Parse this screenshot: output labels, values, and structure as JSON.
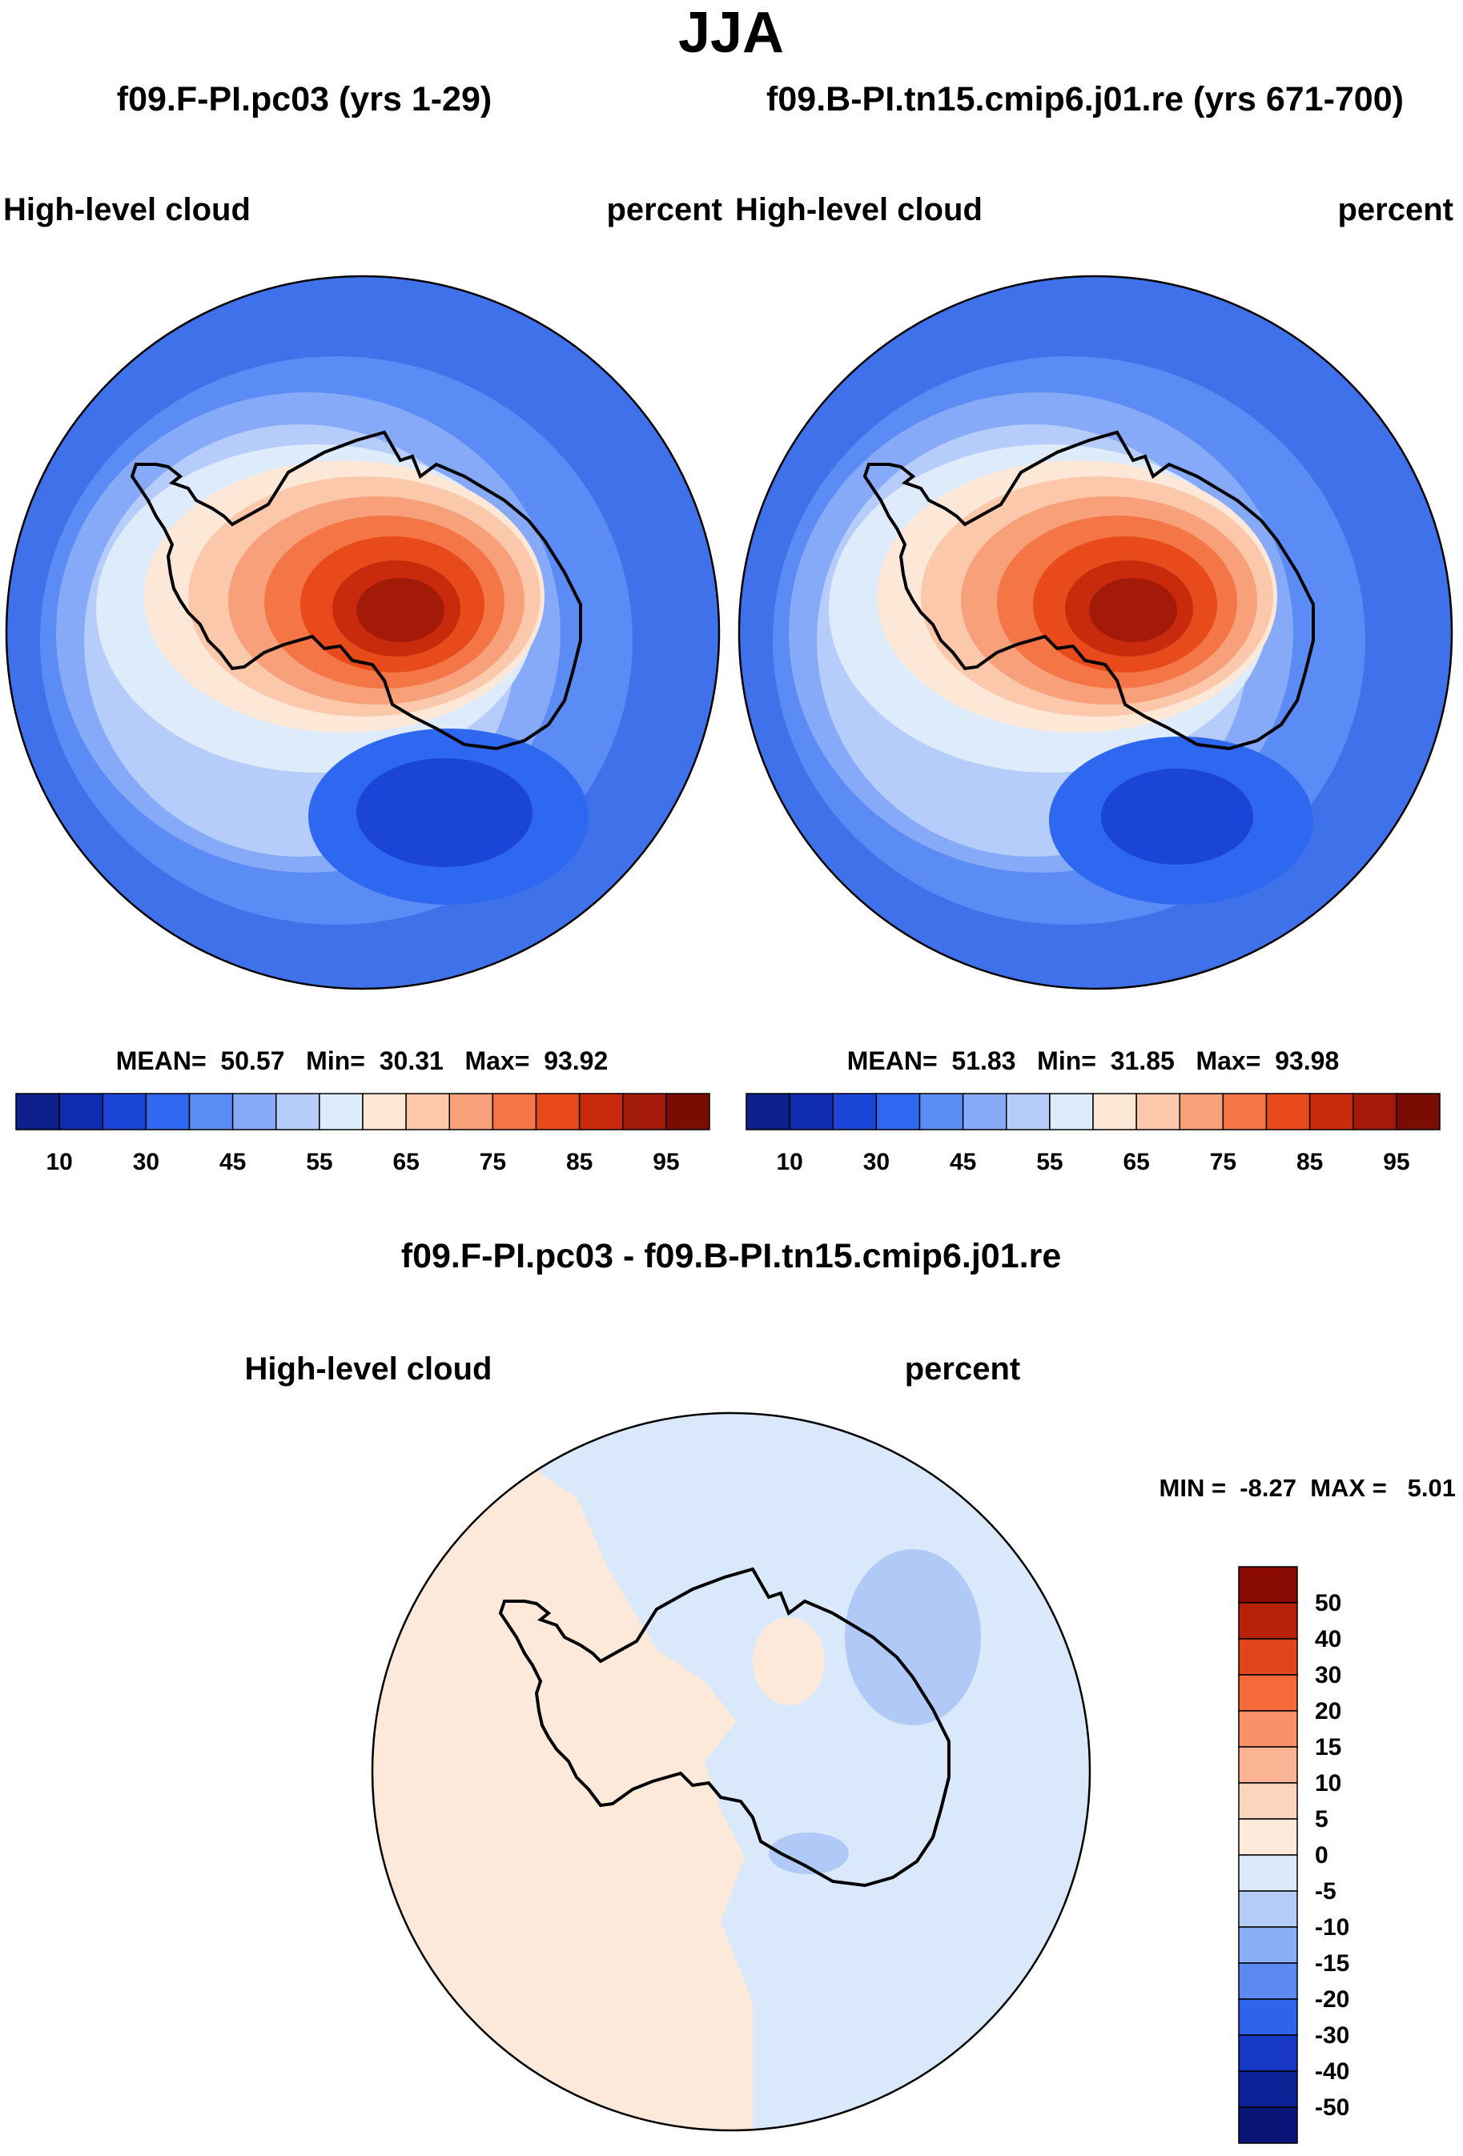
{
  "title": "JJA",
  "panels": [
    {
      "title": "f09.F-PI.pc03 (yrs 1-29)",
      "variable": "High-level cloud",
      "units": "percent",
      "stats": {
        "mean_label": "MEAN=",
        "mean": "50.57",
        "min_label": "Min=",
        "min": "30.31",
        "max_label": "Max=",
        "max": "93.92"
      }
    },
    {
      "title": "f09.B-PI.tn15.cmip6.j01.re (yrs 671-700)",
      "variable": "High-level cloud",
      "units": "percent",
      "stats": {
        "mean_label": "MEAN=",
        "mean": "51.83",
        "min_label": "Min=",
        "min": "31.85",
        "max_label": "Max=",
        "max": "93.98"
      }
    }
  ],
  "colorbar": {
    "ticks": [
      "10",
      "30",
      "45",
      "55",
      "65",
      "75",
      "85",
      "95"
    ],
    "colors": [
      "#0c1f8a",
      "#0f2cb0",
      "#1a45d6",
      "#2f68f0",
      "#5b8bf5",
      "#86aaf7",
      "#b6ccfa",
      "#deebfb",
      "#fde8d8",
      "#fbc8ac",
      "#f8a07a",
      "#f47646",
      "#e84a1c",
      "#c82a0b",
      "#a31a08",
      "#7a0c04"
    ]
  },
  "difference": {
    "title": "f09.F-PI.pc03 - f09.B-PI.tn15.cmip6.j01.re",
    "variable": "High-level cloud",
    "units": "percent",
    "min_label": "MIN =",
    "min": "-8.27",
    "max_label": "MAX =",
    "max": "5.01",
    "ticks": [
      "50",
      "40",
      "30",
      "20",
      "15",
      "10",
      "5",
      "0",
      "-5",
      "-10",
      "-15",
      "-20",
      "-30",
      "-40",
      "-50"
    ],
    "colors": [
      "#8a0b04",
      "#b8220a",
      "#e0461a",
      "#f56a3a",
      "#f9906a",
      "#fbb493",
      "#fdd5bf",
      "#fdeadb",
      "#dbe9fb",
      "#b7cdf9",
      "#8aaef6",
      "#5b8bf2",
      "#2f64ea",
      "#1638c4",
      "#0d2296",
      "#081476"
    ]
  },
  "map_colors": {
    "ocean_far": "#3f72ea",
    "diff_land": "#fde9d9",
    "diff_ocean": "#d9e9fb",
    "diff_neg": "#b1c9f6",
    "coast": "#000000"
  }
}
